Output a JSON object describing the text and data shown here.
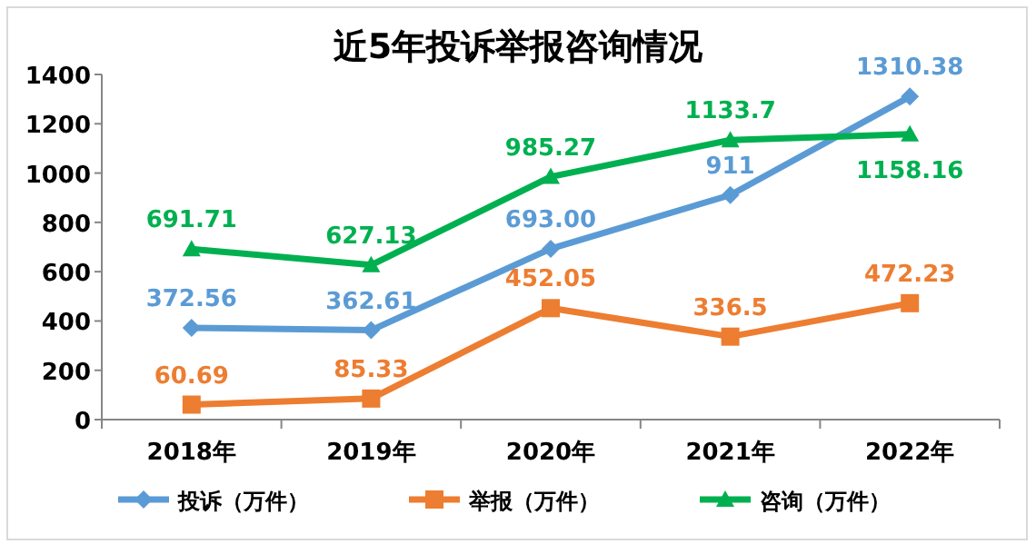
{
  "chart_data": {
    "type": "line",
    "title": "近5年投诉举报咨询情况",
    "categories": [
      "2018年",
      "2019年",
      "2020年",
      "2021年",
      "2022年"
    ],
    "series": [
      {
        "name": "投诉（万件）",
        "color": "#5b9bd5",
        "marker": "diamond",
        "values": [
          372.56,
          362.61,
          693.0,
          911,
          1310.38
        ],
        "value_labels": [
          "372.56",
          "362.61",
          "693.00",
          "911",
          "1310.38"
        ]
      },
      {
        "name": "举报（万件）",
        "color": "#ed7d31",
        "marker": "square",
        "values": [
          60.69,
          85.33,
          452.05,
          336.5,
          472.23
        ],
        "value_labels": [
          "60.69",
          "85.33",
          "452.05",
          "336.5",
          "472.23"
        ]
      },
      {
        "name": "咨询（万件）",
        "color": "#00b050",
        "marker": "triangle",
        "values": [
          691.71,
          627.13,
          985.27,
          1133.7,
          1158.16
        ],
        "value_labels": [
          "691.71",
          "627.13",
          "985.27",
          "1133.7",
          "1158.16"
        ]
      }
    ],
    "ylim": [
      0,
      1400
    ],
    "yticks": [
      0,
      200,
      400,
      600,
      800,
      1000,
      1200,
      1400
    ],
    "grid": false,
    "legend": "bottom"
  }
}
